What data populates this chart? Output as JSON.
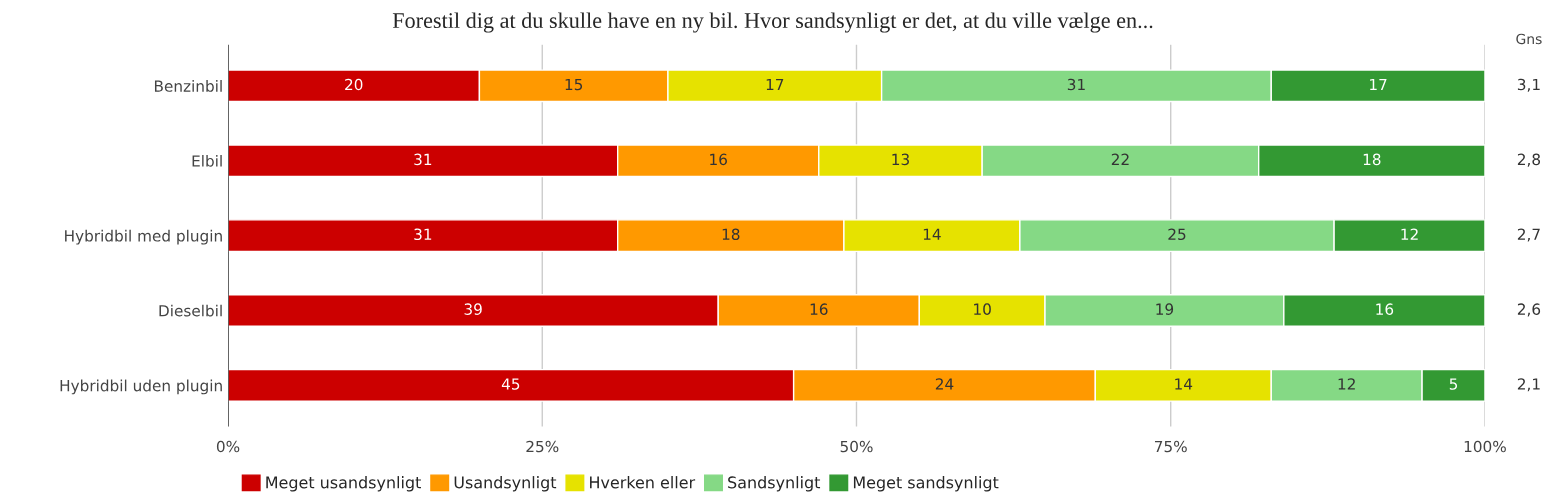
{
  "chart_data": {
    "type": "bar",
    "orientation": "horizontal",
    "stacked": true,
    "title": "Forestil dig at du skulle have en ny bil. Hvor sandsynligt er det, at du ville vælge en...",
    "categories": [
      "Benzinbil",
      "Elbil",
      "Hybridbil med plugin",
      "Dieselbil",
      "Hybridbil uden plugin"
    ],
    "series": [
      {
        "name": "Meget usandsynligt",
        "color": "#cc0000",
        "values": [
          20,
          31,
          31,
          39,
          45
        ]
      },
      {
        "name": "Usandsynligt",
        "color": "#ff9900",
        "values": [
          15,
          16,
          18,
          16,
          24
        ]
      },
      {
        "name": "Hverken eller",
        "color": "#e6e200",
        "values": [
          17,
          13,
          14,
          10,
          14
        ]
      },
      {
        "name": "Sandsynligt",
        "color": "#85d985",
        "values": [
          31,
          22,
          25,
          19,
          12
        ]
      },
      {
        "name": "Meget sandsynligt",
        "color": "#339933",
        "values": [
          17,
          18,
          12,
          16,
          5
        ]
      }
    ],
    "xlim": [
      0,
      100
    ],
    "xticks": [
      {
        "value": 0,
        "label": "0%"
      },
      {
        "value": 25,
        "label": "25%"
      },
      {
        "value": 50,
        "label": "50%"
      },
      {
        "value": 75,
        "label": "75%"
      },
      {
        "value": 100,
        "label": "100%"
      }
    ],
    "grid": "x",
    "legend": "bottom",
    "data_labels": true,
    "annotations": [
      "Gns",
      "3,1",
      "2,8",
      "2,7",
      "2,6",
      "2,1"
    ]
  }
}
